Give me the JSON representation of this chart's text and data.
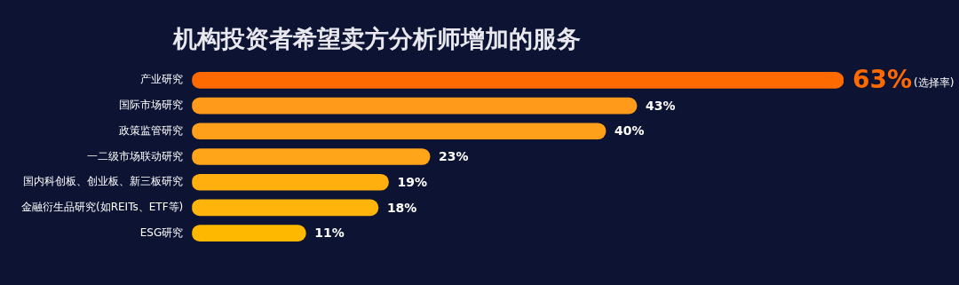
{
  "chart_data": {
    "type": "bar",
    "orientation": "horizontal",
    "title": "机构投资者希望卖方分析师增加的服务",
    "categories": [
      "产业研究",
      "国际市场研究",
      "政策监管研究",
      "一二级市场联动研究",
      "国内科创板、创业板、新三板研究",
      "金融衍生品研究(如REITs、ETF等)",
      "ESG研究"
    ],
    "values": [
      63,
      43,
      40,
      23,
      19,
      18,
      11
    ],
    "colors": [
      "#ff6a00",
      "#ff9a1a",
      "#ffa01a",
      "#ffa51a",
      "#ffb00f",
      "#ffb40c",
      "#ffb800"
    ],
    "value_labels": [
      "63%",
      "43%",
      "40%",
      "23%",
      "19%",
      "18%",
      "11%"
    ],
    "annotations": [
      "(选择率)"
    ],
    "xlim": [
      0,
      63
    ],
    "tick_labels": "y",
    "grid": false,
    "legend": false
  }
}
